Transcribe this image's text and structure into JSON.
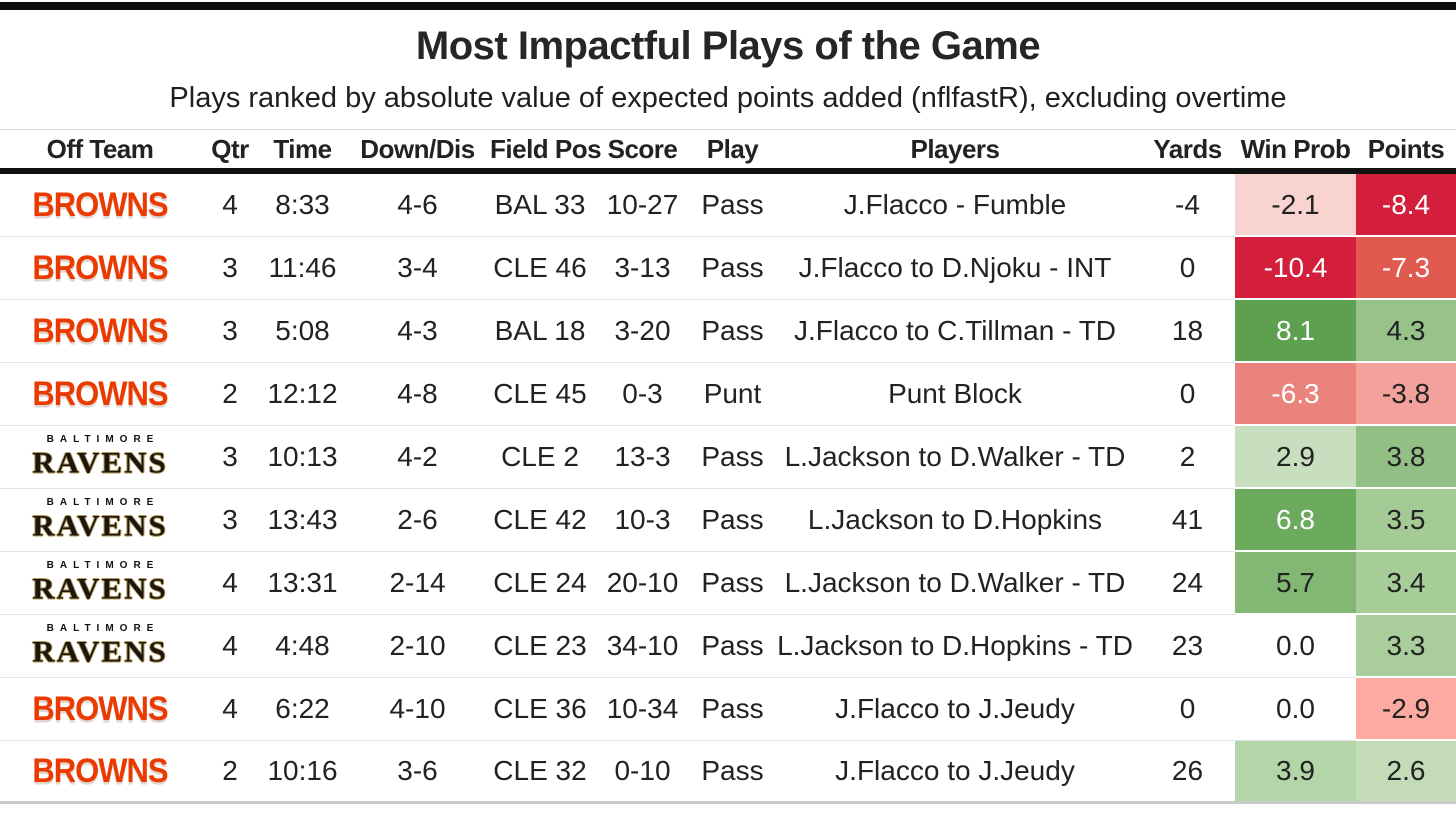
{
  "header": {
    "title": "Most Impactful Plays of the Game",
    "subtitle": "Plays ranked by absolute value of expected points added (nflfastR), excluding overtime"
  },
  "table": {
    "columns": [
      "Off Team",
      "Qtr",
      "Time",
      "Down/Dis",
      "Field Pos",
      "Score",
      "Play",
      "Players",
      "Yards",
      "Win Prob",
      "Points"
    ],
    "teams": {
      "browns": {
        "wordmark": "BROWNS",
        "color": "#eb3a00"
      },
      "ravens": {
        "city": "BALTIMORE",
        "wordmark": "RAVENS",
        "color": "#1b1612",
        "gold": "#b59a57"
      }
    },
    "colors": {
      "header_rule": "#111111",
      "row_divider": "#e3e3e3",
      "bottom_rule": "#c9c9c9",
      "top_bar": "#0d0d0d"
    },
    "rows": [
      {
        "team": "browns",
        "qtr": "4",
        "time": "8:33",
        "down_dis": "4-6",
        "field_pos": "BAL 33",
        "score": "10-27",
        "play": "Pass",
        "players": "J.Flacco - Fumble",
        "yards": "-4",
        "win_prob": {
          "value": "-2.1",
          "bg": "#f9d3d0",
          "fg": "#222222"
        },
        "points": {
          "value": "-8.4",
          "bg": "#d31e3c",
          "fg": "#ffffff"
        }
      },
      {
        "team": "browns",
        "qtr": "3",
        "time": "11:46",
        "down_dis": "3-4",
        "field_pos": "CLE 46",
        "score": "3-13",
        "play": "Pass",
        "players": "J.Flacco to D.Njoku - INT",
        "yards": "0",
        "win_prob": {
          "value": "-10.4",
          "bg": "#d31e3c",
          "fg": "#ffffff"
        },
        "points": {
          "value": "-7.3",
          "bg": "#e15a50",
          "fg": "#ffffff"
        }
      },
      {
        "team": "browns",
        "qtr": "3",
        "time": "5:08",
        "down_dis": "4-3",
        "field_pos": "BAL 18",
        "score": "3-20",
        "play": "Pass",
        "players": "J.Flacco to C.Tillman - TD",
        "yards": "18",
        "win_prob": {
          "value": "8.1",
          "bg": "#5ca050",
          "fg": "#ffffff"
        },
        "points": {
          "value": "4.3",
          "bg": "#97c389",
          "fg": "#222222"
        }
      },
      {
        "team": "browns",
        "qtr": "2",
        "time": "12:12",
        "down_dis": "4-8",
        "field_pos": "CLE 45",
        "score": "0-3",
        "play": "Punt",
        "players": "Punt Block",
        "yards": "0",
        "win_prob": {
          "value": "-6.3",
          "bg": "#e9837b",
          "fg": "#ffffff"
        },
        "points": {
          "value": "-3.8",
          "bg": "#f2a29b",
          "fg": "#222222"
        }
      },
      {
        "team": "ravens",
        "qtr": "3",
        "time": "10:13",
        "down_dis": "4-2",
        "field_pos": "CLE 2",
        "score": "13-3",
        "play": "Pass",
        "players": "L.Jackson to D.Walker - TD",
        "yards": "2",
        "win_prob": {
          "value": "2.9",
          "bg": "#c8dfbf",
          "fg": "#222222"
        },
        "points": {
          "value": "3.8",
          "bg": "#92c084",
          "fg": "#222222"
        }
      },
      {
        "team": "ravens",
        "qtr": "3",
        "time": "13:43",
        "down_dis": "2-6",
        "field_pos": "CLE 42",
        "score": "10-3",
        "play": "Pass",
        "players": "L.Jackson to D.Hopkins",
        "yards": "41",
        "win_prob": {
          "value": "6.8",
          "bg": "#6cab5e",
          "fg": "#ffffff"
        },
        "points": {
          "value": "3.5",
          "bg": "#a4cb95",
          "fg": "#222222"
        }
      },
      {
        "team": "ravens",
        "qtr": "4",
        "time": "13:31",
        "down_dis": "2-14",
        "field_pos": "CLE 24",
        "score": "20-10",
        "play": "Pass",
        "players": "L.Jackson to D.Walker - TD",
        "yards": "24",
        "win_prob": {
          "value": "5.7",
          "bg": "#82b873",
          "fg": "#222222"
        },
        "points": {
          "value": "3.4",
          "bg": "#a7cd99",
          "fg": "#222222"
        }
      },
      {
        "team": "ravens",
        "qtr": "4",
        "time": "4:48",
        "down_dis": "2-10",
        "field_pos": "CLE 23",
        "score": "34-10",
        "play": "Pass",
        "players": "L.Jackson to D.Hopkins - TD",
        "yards": "23",
        "win_prob": {
          "value": "0.0",
          "bg": "#ffffff",
          "fg": "#222222"
        },
        "points": {
          "value": "3.3",
          "bg": "#a9ce9b",
          "fg": "#222222"
        }
      },
      {
        "team": "browns",
        "qtr": "4",
        "time": "6:22",
        "down_dis": "4-10",
        "field_pos": "CLE 36",
        "score": "10-34",
        "play": "Pass",
        "players": "J.Flacco to J.Jeudy",
        "yards": "0",
        "win_prob": {
          "value": "0.0",
          "bg": "#ffffff",
          "fg": "#222222"
        },
        "points": {
          "value": "-2.9",
          "bg": "#fdaba2",
          "fg": "#222222"
        }
      },
      {
        "team": "browns",
        "qtr": "2",
        "time": "10:16",
        "down_dis": "3-6",
        "field_pos": "CLE 32",
        "score": "0-10",
        "play": "Pass",
        "players": "J.Flacco to J.Jeudy",
        "yards": "26",
        "win_prob": {
          "value": "3.9",
          "bg": "#b4d5a7",
          "fg": "#222222"
        },
        "points": {
          "value": "2.6",
          "bg": "#c3dcb7",
          "fg": "#222222"
        }
      }
    ]
  },
  "chart_data": {
    "type": "table",
    "title": "Most Impactful Plays of the Game",
    "subtitle": "Plays ranked by absolute value of expected points added (nflfastR), excluding overtime",
    "columns": [
      "Off Team",
      "Qtr",
      "Time",
      "Down/Dis",
      "Field Pos",
      "Score",
      "Play",
      "Players",
      "Yards",
      "Win Prob",
      "Points"
    ],
    "series": [
      {
        "name": "Win Prob",
        "values": [
          -2.1,
          -10.4,
          8.1,
          -6.3,
          2.9,
          6.8,
          5.7,
          0.0,
          0.0,
          3.9
        ]
      },
      {
        "name": "Points",
        "values": [
          -8.4,
          -7.3,
          4.3,
          -3.8,
          3.8,
          3.5,
          3.4,
          3.3,
          -2.9,
          2.6
        ]
      },
      {
        "name": "Yards",
        "values": [
          -4,
          0,
          18,
          0,
          2,
          41,
          24,
          23,
          0,
          26
        ]
      }
    ],
    "categories": [
      "CLE 4-6 BAL 33",
      "CLE 3-4 CLE 46",
      "CLE 4-3 BAL 18",
      "CLE 4-8 CLE 45",
      "BAL 4-2 CLE 2",
      "BAL 2-6 CLE 42",
      "BAL 2-14 CLE 24",
      "BAL 2-10 CLE 23",
      "CLE 4-10 CLE 36",
      "CLE 3-6 CLE 32"
    ]
  }
}
